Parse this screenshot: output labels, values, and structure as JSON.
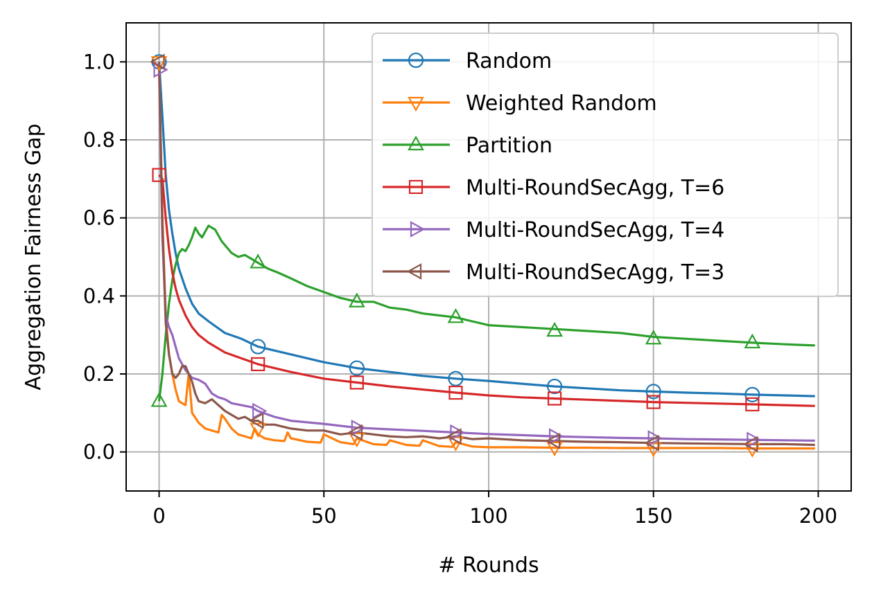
{
  "chart_data": {
    "type": "line",
    "title": "",
    "xlabel": "# Rounds",
    "ylabel": "Aggregation Fairness Gap",
    "xlim": [
      -10,
      210
    ],
    "ylim": [
      -0.1,
      1.1
    ],
    "xticks": [
      0,
      50,
      100,
      150,
      200
    ],
    "yticks": [
      0.0,
      0.2,
      0.4,
      0.6,
      0.8,
      1.0
    ],
    "xtick_labels": [
      "0",
      "50",
      "100",
      "150",
      "200"
    ],
    "ytick_labels": [
      "0.0",
      "0.2",
      "0.4",
      "0.6",
      "0.8",
      "1.0"
    ],
    "grid": true,
    "legend_position": "top-right",
    "series": [
      {
        "name": "Random",
        "color": "#1f77b4",
        "marker": "circle",
        "x": [
          0,
          1,
          2,
          3,
          4,
          5,
          6,
          8,
          10,
          12,
          15,
          20,
          25,
          30,
          40,
          50,
          60,
          70,
          80,
          90,
          100,
          110,
          120,
          130,
          140,
          150,
          160,
          170,
          180,
          190,
          199
        ],
        "y": [
          1.0,
          0.86,
          0.71,
          0.62,
          0.56,
          0.51,
          0.47,
          0.42,
          0.38,
          0.355,
          0.335,
          0.305,
          0.29,
          0.27,
          0.25,
          0.23,
          0.215,
          0.205,
          0.195,
          0.188,
          0.182,
          0.175,
          0.168,
          0.163,
          0.158,
          0.155,
          0.152,
          0.15,
          0.147,
          0.145,
          0.143
        ],
        "marker_x": [
          0,
          30,
          60,
          90,
          120,
          150,
          180
        ],
        "marker_y": [
          1.0,
          0.27,
          0.215,
          0.188,
          0.168,
          0.155,
          0.147
        ]
      },
      {
        "name": "Weighted Random",
        "color": "#ff7f0e",
        "marker": "triangle-down",
        "x": [
          0,
          1,
          2,
          3,
          4,
          5,
          6,
          7,
          8,
          9,
          10,
          12,
          14,
          16,
          18,
          19,
          20,
          22,
          24,
          26,
          28,
          29,
          30,
          32,
          35,
          38,
          39,
          40,
          45,
          49,
          50,
          55,
          59,
          60,
          65,
          69,
          70,
          75,
          79,
          80,
          85,
          89,
          90,
          95,
          100,
          110,
          120,
          130,
          140,
          150,
          160,
          170,
          180,
          190,
          199
        ],
        "y": [
          1.0,
          0.6,
          0.35,
          0.25,
          0.2,
          0.16,
          0.13,
          0.125,
          0.12,
          0.2,
          0.1,
          0.075,
          0.06,
          0.055,
          0.05,
          0.095,
          0.085,
          0.06,
          0.045,
          0.04,
          0.035,
          0.06,
          0.045,
          0.035,
          0.03,
          0.028,
          0.05,
          0.035,
          0.026,
          0.024,
          0.045,
          0.025,
          0.02,
          0.035,
          0.02,
          0.018,
          0.03,
          0.018,
          0.016,
          0.03,
          0.015,
          0.013,
          0.025,
          0.014,
          0.012,
          0.012,
          0.011,
          0.011,
          0.01,
          0.01,
          0.01,
          0.01,
          0.009,
          0.009,
          0.009
        ],
        "marker_x": [
          0,
          30,
          60,
          90,
          120,
          150,
          180
        ],
        "marker_y": [
          1.0,
          0.06,
          0.035,
          0.025,
          0.012,
          0.01,
          0.009
        ]
      },
      {
        "name": "Partition",
        "color": "#2ca02c",
        "marker": "triangle-up",
        "x": [
          0,
          1,
          2,
          3,
          4,
          5,
          6,
          7,
          8,
          9,
          10,
          11,
          12,
          13,
          14,
          15,
          16,
          17,
          18,
          19,
          20,
          22,
          24,
          26,
          28,
          30,
          33,
          36,
          40,
          45,
          50,
          55,
          60,
          65,
          70,
          75,
          80,
          85,
          90,
          95,
          100,
          110,
          120,
          130,
          140,
          150,
          160,
          170,
          180,
          190,
          199
        ],
        "y": [
          0.13,
          0.2,
          0.3,
          0.38,
          0.44,
          0.48,
          0.51,
          0.52,
          0.515,
          0.53,
          0.55,
          0.575,
          0.56,
          0.55,
          0.565,
          0.58,
          0.575,
          0.57,
          0.555,
          0.54,
          0.53,
          0.51,
          0.5,
          0.505,
          0.495,
          0.485,
          0.47,
          0.46,
          0.445,
          0.425,
          0.41,
          0.395,
          0.385,
          0.385,
          0.37,
          0.365,
          0.355,
          0.35,
          0.345,
          0.335,
          0.325,
          0.32,
          0.315,
          0.31,
          0.305,
          0.295,
          0.29,
          0.285,
          0.28,
          0.276,
          0.273
        ],
        "marker_x": [
          0,
          30,
          60,
          90,
          120,
          150,
          180
        ],
        "marker_y": [
          0.13,
          0.485,
          0.385,
          0.345,
          0.31,
          0.29,
          0.28
        ]
      },
      {
        "name": "Multi-RoundSecAgg, T=6",
        "color": "#d62728",
        "marker": "square",
        "x": [
          0,
          1,
          2,
          3,
          4,
          5,
          6,
          8,
          10,
          12,
          15,
          20,
          25,
          30,
          40,
          50,
          60,
          70,
          80,
          90,
          100,
          110,
          120,
          130,
          140,
          150,
          160,
          170,
          180,
          190,
          199
        ],
        "y": [
          0.71,
          0.7,
          0.6,
          0.52,
          0.46,
          0.42,
          0.39,
          0.35,
          0.32,
          0.3,
          0.28,
          0.255,
          0.24,
          0.225,
          0.205,
          0.188,
          0.178,
          0.168,
          0.16,
          0.152,
          0.145,
          0.14,
          0.137,
          0.134,
          0.131,
          0.128,
          0.126,
          0.124,
          0.122,
          0.12,
          0.118
        ],
        "marker_x": [
          0,
          30,
          60,
          90,
          120,
          150,
          180
        ],
        "marker_y": [
          0.71,
          0.225,
          0.178,
          0.152,
          0.137,
          0.128,
          0.122
        ]
      },
      {
        "name": "Multi-RoundSecAgg, T=4",
        "color": "#9467bd",
        "marker": "triangle-right",
        "x": [
          0,
          1,
          2,
          3,
          4,
          5,
          6,
          8,
          10,
          12,
          14,
          16,
          18,
          20,
          22,
          25,
          28,
          30,
          35,
          40,
          50,
          60,
          70,
          80,
          90,
          100,
          110,
          120,
          130,
          140,
          150,
          160,
          170,
          180,
          190,
          199
        ],
        "y": [
          0.98,
          0.55,
          0.35,
          0.32,
          0.3,
          0.27,
          0.24,
          0.21,
          0.19,
          0.185,
          0.175,
          0.15,
          0.14,
          0.135,
          0.125,
          0.12,
          0.115,
          0.105,
          0.09,
          0.08,
          0.072,
          0.062,
          0.058,
          0.054,
          0.05,
          0.046,
          0.043,
          0.04,
          0.038,
          0.036,
          0.035,
          0.033,
          0.032,
          0.031,
          0.03,
          0.029
        ],
        "marker_x": [
          0,
          30,
          60,
          90,
          120,
          150,
          180
        ],
        "marker_y": [
          0.98,
          0.105,
          0.062,
          0.05,
          0.04,
          0.035,
          0.031
        ]
      },
      {
        "name": "Multi-RoundSecAgg, T=3",
        "color": "#8c564b",
        "marker": "triangle-left",
        "x": [
          0,
          1,
          2,
          3,
          4,
          5,
          6,
          7,
          8,
          9,
          10,
          11,
          12,
          14,
          16,
          18,
          20,
          22,
          24,
          26,
          28,
          30,
          32,
          35,
          40,
          45,
          50,
          55,
          60,
          65,
          70,
          75,
          80,
          85,
          90,
          95,
          100,
          110,
          120,
          130,
          140,
          150,
          160,
          170,
          180,
          190,
          199
        ],
        "y": [
          1.0,
          0.58,
          0.33,
          0.25,
          0.2,
          0.19,
          0.2,
          0.22,
          0.22,
          0.2,
          0.18,
          0.15,
          0.13,
          0.125,
          0.135,
          0.12,
          0.105,
          0.095,
          0.085,
          0.09,
          0.08,
          0.08,
          0.07,
          0.07,
          0.06,
          0.055,
          0.055,
          0.045,
          0.05,
          0.045,
          0.04,
          0.038,
          0.04,
          0.035,
          0.04,
          0.033,
          0.035,
          0.03,
          0.028,
          0.026,
          0.025,
          0.023,
          0.022,
          0.021,
          0.02,
          0.02,
          0.018
        ],
        "marker_x": [
          0,
          30,
          60,
          90,
          120,
          150,
          180
        ],
        "marker_y": [
          1.0,
          0.08,
          0.05,
          0.04,
          0.028,
          0.023,
          0.02
        ]
      }
    ]
  }
}
